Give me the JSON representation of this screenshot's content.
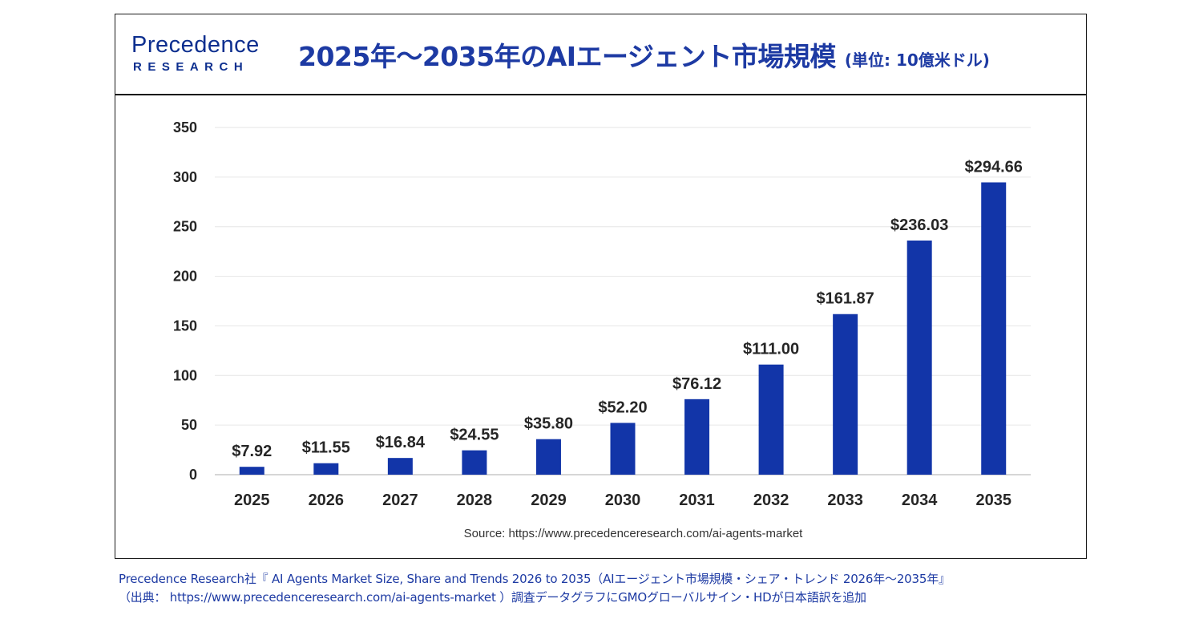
{
  "header": {
    "logo_name": "Precedence",
    "logo_sub": "RESEARCH",
    "title": "2025年〜2035年のAIエージェント市場規模",
    "title_unit": "(単位: 10億米ドル)"
  },
  "chart_data": {
    "type": "bar",
    "categories": [
      "2025",
      "2026",
      "2027",
      "2028",
      "2029",
      "2030",
      "2031",
      "2032",
      "2033",
      "2034",
      "2035"
    ],
    "values": [
      7.92,
      11.55,
      16.84,
      24.55,
      35.8,
      52.2,
      76.12,
      111.0,
      161.87,
      236.03,
      294.66
    ],
    "value_labels": [
      "$7.92",
      "$11.55",
      "$16.84",
      "$24.55",
      "$35.80",
      "$52.20",
      "$76.12",
      "$111.00",
      "$161.87",
      "$236.03",
      "$294.66"
    ],
    "title": "2025年〜2035年のAIエージェント市場規模",
    "ylim": [
      0,
      350
    ],
    "yticks": [
      0,
      50,
      100,
      150,
      200,
      250,
      300,
      350
    ],
    "grid": true,
    "bar_color": "#1235a8",
    "source": "Source: https://www.precedenceresearch.com/ai-agents-market"
  },
  "caption": {
    "line1": "Precedence Research社『 AI Agents Market Size, Share and Trends 2026 to 2035（AIエージェント市場規模・シェア・トレンド 2026年〜2035年』",
    "line2": "（出典： https://www.precedenceresearch.com/ai-agents-market ）調査データグラフにGMOグローバルサイン・HDが日本語訳を追加"
  }
}
